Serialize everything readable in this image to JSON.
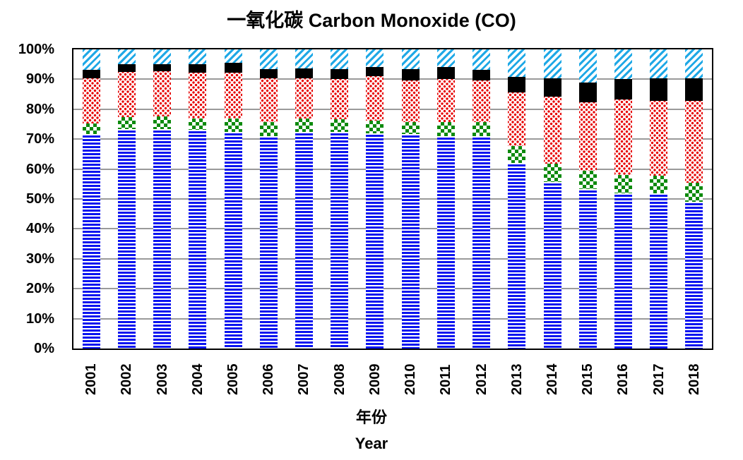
{
  "chart_data": {
    "type": "bar",
    "stacked": true,
    "normalized_percent": true,
    "title": "一氧化碳 Carbon Monoxide (CO)",
    "xlabel": "年份",
    "xlabel_en": "Year",
    "ylabel": "",
    "ylim": [
      0,
      100
    ],
    "yticks": [
      "0%",
      "10%",
      "20%",
      "30%",
      "40%",
      "50%",
      "60%",
      "70%",
      "80%",
      "90%",
      "100%"
    ],
    "grid": true,
    "legend": null,
    "categories": [
      "2001",
      "2002",
      "2003",
      "2004",
      "2005",
      "2006",
      "2007",
      "2008",
      "2009",
      "2010",
      "2011",
      "2012",
      "2013",
      "2014",
      "2015",
      "2016",
      "2017",
      "2018"
    ],
    "series": [
      {
        "name": "Series 1 (blue horizontal stripes)",
        "color": "#0a14f0",
        "pattern": "horizontal-stripes",
        "values": [
          71.7,
          73.4,
          73.4,
          73.1,
          72.3,
          71.1,
          72.3,
          72.3,
          71.9,
          71.7,
          71.1,
          71.1,
          62.0,
          55.6,
          53.3,
          51.8,
          51.8,
          49.1
        ]
      },
      {
        "name": "Series 2 (green checker)",
        "color": "#0d8a0d",
        "pattern": "checker",
        "values": [
          3.5,
          3.9,
          4.3,
          3.8,
          4.6,
          4.5,
          4.6,
          4.4,
          4.3,
          4.1,
          4.7,
          4.5,
          5.8,
          6.3,
          6.1,
          6.3,
          6.1,
          6.3
        ]
      },
      {
        "name": "Series 3 (red dots)",
        "color": "#e60000",
        "pattern": "dots",
        "values": [
          15.2,
          15.2,
          14.9,
          15.4,
          15.4,
          14.8,
          13.5,
          13.3,
          14.8,
          13.8,
          14.4,
          14.0,
          17.9,
          22.4,
          23.0,
          25.2,
          25.0,
          27.5
        ]
      },
      {
        "name": "Series 4 (black solid)",
        "color": "#000000",
        "pattern": "solid",
        "values": [
          2.8,
          2.6,
          2.5,
          2.7,
          3.2,
          3.1,
          3.3,
          3.3,
          3.1,
          3.7,
          3.9,
          3.6,
          5.2,
          6.1,
          6.6,
          6.7,
          7.5,
          7.5
        ]
      },
      {
        "name": "Series 5 (cyan diagonal stripes)",
        "color": "#1ea8e6",
        "pattern": "diagonal-stripes",
        "values": [
          6.8,
          4.9,
          4.9,
          5.0,
          4.5,
          6.5,
          6.3,
          6.7,
          5.9,
          6.7,
          5.9,
          6.8,
          9.1,
          9.6,
          11.0,
          10.0,
          9.6,
          9.6
        ]
      }
    ]
  }
}
